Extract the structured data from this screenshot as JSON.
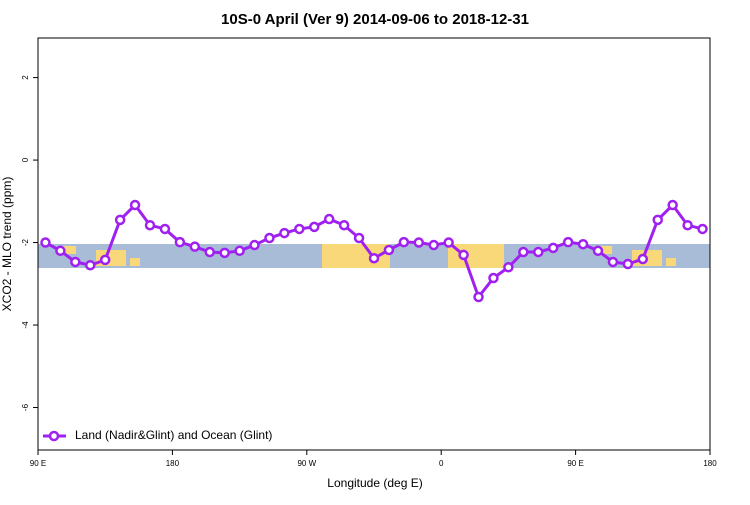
{
  "chart_data": {
    "type": "line",
    "title": "10S-0 April (Ver 9)   2014-09-06 to 2018-12-31",
    "x_label": "Longitude (deg E)",
    "y_label": "XCO2 - MLO trend (ppm)",
    "x": [
      95,
      105,
      115,
      125,
      135,
      145,
      155,
      165,
      175,
      185,
      195,
      205,
      215,
      225,
      235,
      245,
      255,
      265,
      275,
      285,
      295,
      305,
      315,
      325,
      335,
      345,
      355,
      365,
      375,
      385,
      395,
      405,
      415,
      425,
      435,
      445,
      455,
      465,
      475,
      485,
      495,
      505,
      515,
      525,
      535
    ],
    "series": [
      {
        "name": "Land (Nadir&Glint) and Ocean (Glint)",
        "color": "#a020f0",
        "values": [
          -2.0,
          -2.2,
          -2.47,
          -2.55,
          -2.42,
          -1.45,
          -1.09,
          -1.58,
          -1.67,
          -1.99,
          -2.1,
          -2.23,
          -2.25,
          -2.2,
          -2.06,
          -1.89,
          -1.77,
          -1.67,
          -1.62,
          -1.43,
          -1.58,
          -1.89,
          -2.38,
          -2.18,
          -1.99,
          -2.0,
          -2.06,
          -2.0,
          -2.3,
          -3.32,
          -2.86,
          -2.6,
          -2.23,
          -2.23,
          -2.13,
          -1.99,
          -2.04,
          -2.2,
          -2.47,
          -2.52,
          -2.4,
          -1.45,
          -1.09,
          -1.58,
          -1.67
        ]
      }
    ],
    "xlim": [
      90,
      540
    ],
    "xticks": [
      {
        "value": 90,
        "label": "90 E"
      },
      180,
      {
        "value": 270,
        "label": "90 W"
      },
      {
        "value": 360,
        "label": "0"
      },
      {
        "value": 450,
        "label": "90 E"
      },
      {
        "value": 540,
        "label": "180"
      }
    ],
    "ylim": [
      -7.03,
      2.96
    ],
    "yticks": [
      2,
      0,
      -2,
      -4,
      -6
    ],
    "legend": "bottom-left"
  }
}
